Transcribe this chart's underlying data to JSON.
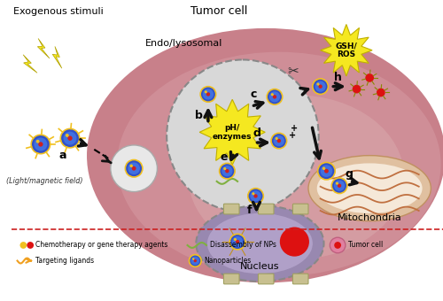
{
  "title_left": "Exogenous stimuli",
  "title_center": "Tumor cell",
  "subtitle_endo": "Endo/lysosomal",
  "subtitle_nucleus": "Nucleus",
  "subtitle_mito": "Mitochondria",
  "label_light": "(Light/magnetic field)",
  "label_gsh": "GSH/\nROS",
  "label_ph": "pH/\nenzymes",
  "labels_abc": [
    "a",
    "b",
    "c",
    "d",
    "e",
    "f",
    "g",
    "h"
  ],
  "bg_color": "#ffffff",
  "cell_facecolor": "#c8808a",
  "cell_inner_color": "#d8a0a8",
  "endo_facecolor": "#d8d8d8",
  "endo_edgecolor": "#888888",
  "nucleus_outer_fc": "#9888b0",
  "nucleus_inner_fc": "#b0a0c8",
  "mito_outer_fc": "#e0c0a0",
  "mito_outer_ec": "#c09060",
  "mito_inner_fc": "#f5e8d8",
  "mito_line_color": "#c07040",
  "pre_cell_fc": "#e8e8e8",
  "pre_cell_ec": "#aaaaaa",
  "np_blue": "#3050c8",
  "np_blue2": "#4070e0",
  "np_core_red": "#cc2020",
  "np_core_yellow": "#f0c020",
  "lightning_color": "#f5e820",
  "lightning_ec": "#b0a000",
  "starburst_color": "#f5e820",
  "starburst_ec": "#c0b000",
  "arrow_color": "#111111",
  "dashed_line_color": "#cc2020",
  "legend_green_wave": "#80b040",
  "legend_gold_wave": "#f0a020",
  "legend_tumor_fc": "#e080a0",
  "legend_tumor_ec": "#c06080",
  "legend_tumor_core": "#dd1111",
  "nucleus_red": "#dd1111",
  "released_red": "#dd1111",
  "released_spike": "#888800",
  "figsize": [
    5.0,
    3.4
  ],
  "dpi": 100
}
